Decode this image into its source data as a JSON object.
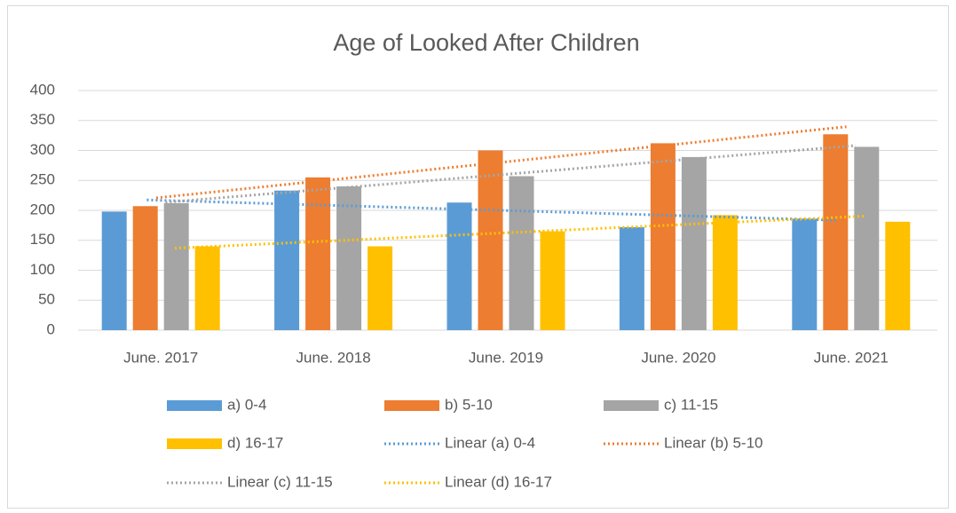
{
  "chart_data": {
    "type": "bar",
    "title": "Age of Looked After Children",
    "categories": [
      "June. 2017",
      "June. 2018",
      "June. 2019",
      "June. 2020",
      "June. 2021"
    ],
    "series": [
      {
        "name": "a) 0-4",
        "color": "#5b9bd5",
        "values": [
          198,
          233,
          213,
          172,
          186
        ],
        "trendline": "Linear (a) 0-4"
      },
      {
        "name": "b) 5-10",
        "color": "#ed7d31",
        "values": [
          207,
          255,
          300,
          312,
          327
        ],
        "trendline": "Linear (b) 5-10"
      },
      {
        "name": "c) 11-15",
        "color": "#a5a5a5",
        "values": [
          212,
          240,
          257,
          289,
          306
        ],
        "trendline": "Linear (c) 11-15"
      },
      {
        "name": "d) 16-17",
        "color": "#ffc000",
        "values": [
          140,
          140,
          165,
          192,
          181
        ],
        "trendline": "Linear (d) 16-17"
      }
    ],
    "ylim": [
      0,
      400
    ],
    "yticks": [
      0,
      50,
      100,
      150,
      200,
      250,
      300,
      350,
      400
    ],
    "grid": true,
    "legend": "bottom"
  }
}
